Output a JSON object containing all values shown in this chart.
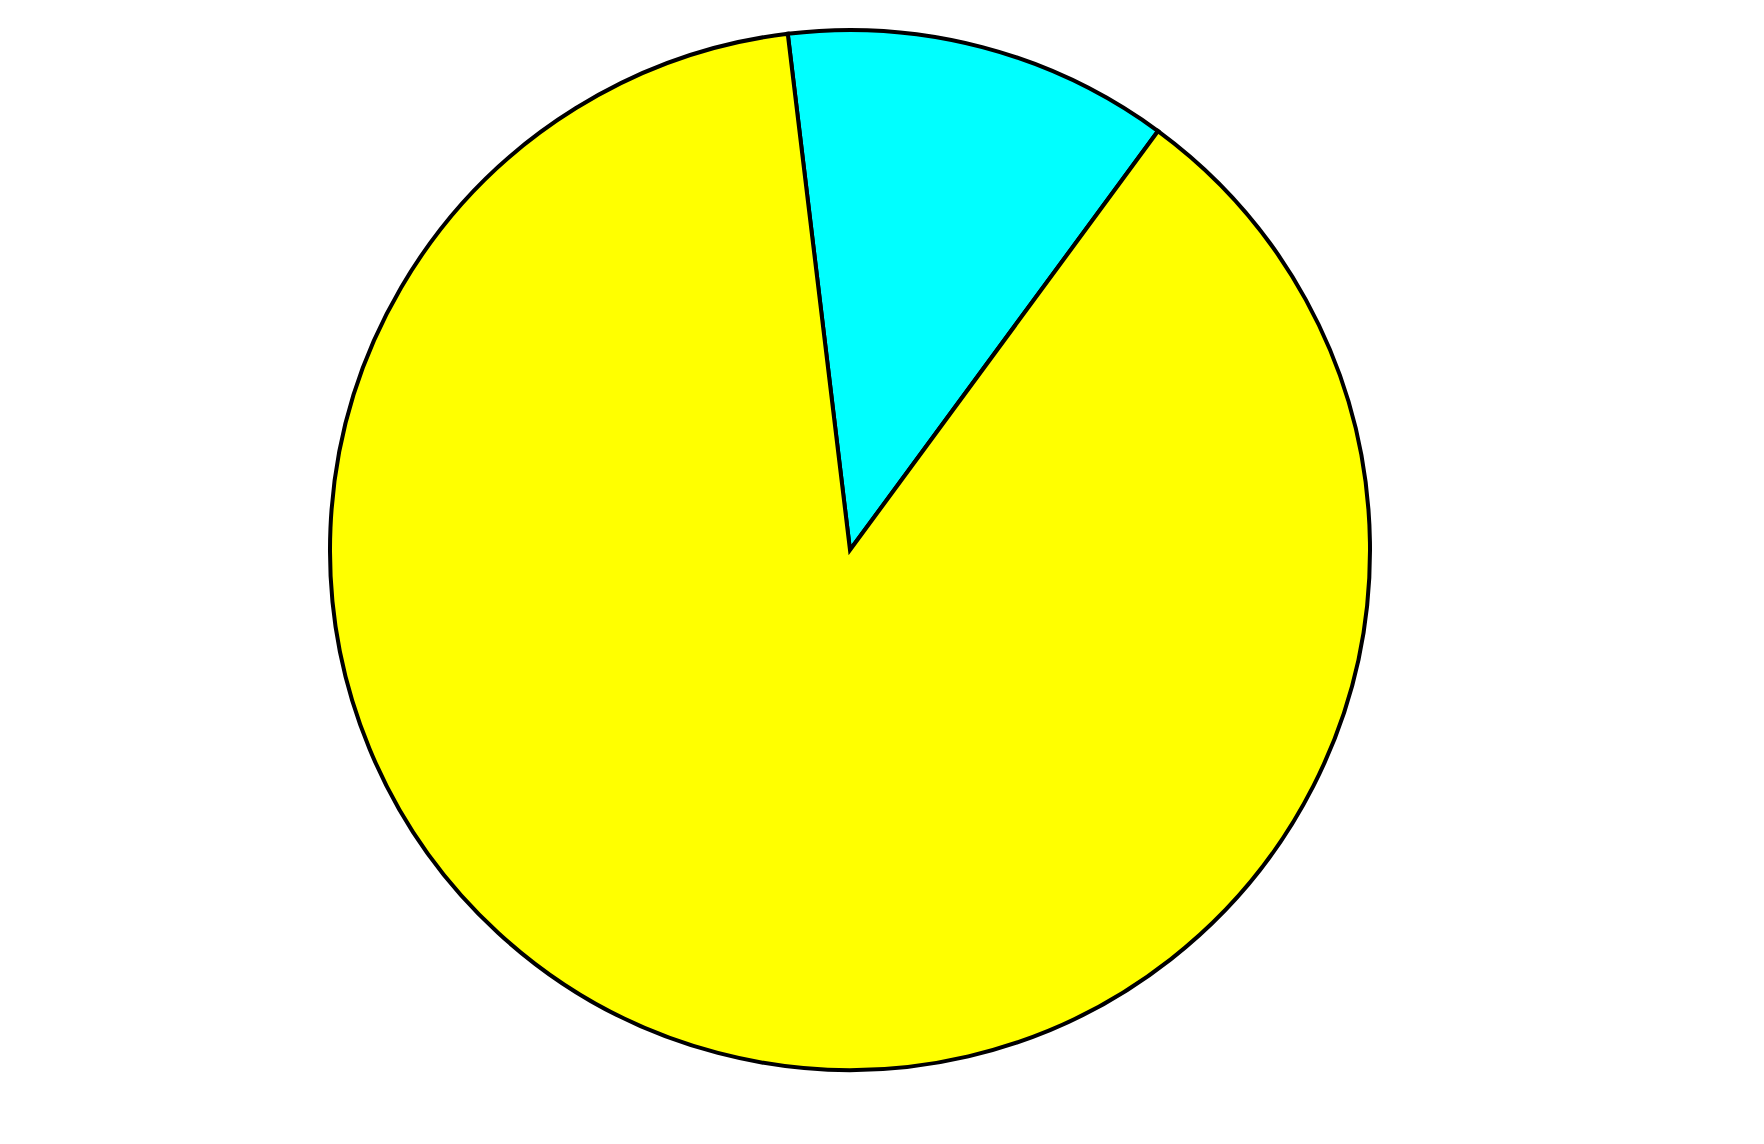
{
  "chart_data": {
    "type": "pie",
    "categories": [
      null,
      null
    ],
    "values": [
      12,
      88
    ],
    "colors": [
      "#00ffff",
      "#ffff00"
    ]
  }
}
